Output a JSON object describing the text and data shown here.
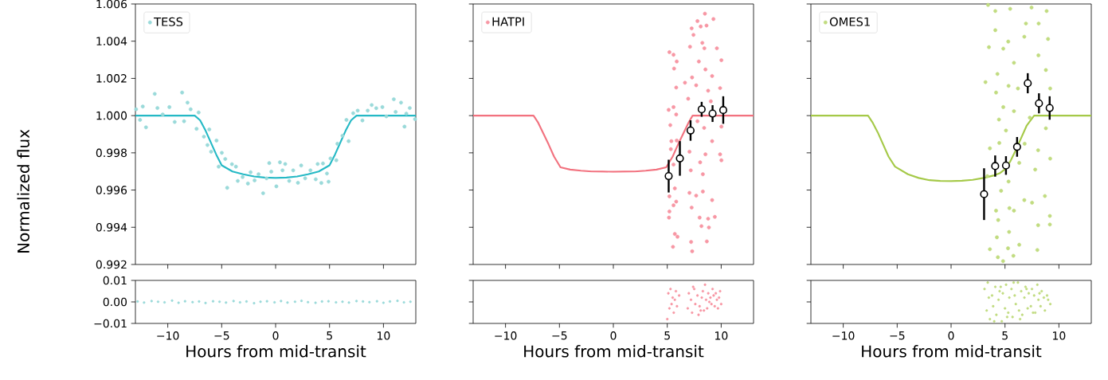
{
  "chart_data": [
    {
      "type": "scatter",
      "ylabel": "Normalized flux",
      "xlim": [
        -13,
        13
      ],
      "ylim": [
        0.992,
        1.006
      ],
      "xticks": [
        -10,
        -5,
        0,
        5,
        10
      ],
      "yticks": [
        {
          "value": 0.992,
          "label": "0.992"
        },
        {
          "value": 0.994,
          "label": "0.994"
        },
        {
          "value": 0.996,
          "label": "0.996"
        },
        {
          "value": 0.998,
          "label": "0.998"
        },
        {
          "value": 1.0,
          "label": "1.000"
        },
        {
          "value": 1.002,
          "label": "1.002"
        },
        {
          "value": 1.004,
          "label": "1.004"
        },
        {
          "value": 1.006,
          "label": "1.006"
        }
      ],
      "tick_labels": "y",
      "legend": "top left",
      "marker": "circle",
      "series": [
        {
          "name": "TESS",
          "type": "scatter",
          "color": "#9adada",
          "x": [
            -12.94,
            -12.57,
            -12.32,
            -12.02,
            -11.21,
            -10.96,
            -10.47,
            -9.85,
            -9.36,
            -8.67,
            -8.49,
            -8.17,
            -7.88,
            -7.33,
            -7.14,
            -6.65,
            -6.32,
            -6.15,
            -5.98,
            -5.48,
            -5.28,
            -4.99,
            -4.67,
            -4.49,
            -4.05,
            -3.68,
            -3.51,
            -3.06,
            -2.57,
            -2.32,
            -1.95,
            -1.58,
            -1.16,
            -0.84,
            -0.59,
            -0.4,
            0.07,
            0.4,
            0.64,
            0.89,
            1.26,
            1.63,
            2.07,
            2.37,
            2.74,
            3.23,
            3.72,
            3.9,
            4.24,
            4.39,
            4.76,
            4.91,
            5.09,
            5.63,
            5.73,
            6.2,
            6.57,
            6.77,
            7.19,
            7.61,
            8.05,
            8.54,
            8.91,
            9.33,
            9.9,
            10.27,
            10.96,
            11.13,
            11.63,
            11.95,
            12.12,
            12.44,
            12.93
          ],
          "values": [
            1.00034,
            0.99977,
            1.00049,
            0.99937,
            1.00117,
            1.00041,
            1.00006,
            1.00046,
            0.99966,
            1.00124,
            0.9997,
            1.0007,
            1.00034,
            0.99929,
            1.00017,
            0.99887,
            0.99842,
            0.99926,
            0.99806,
            0.99866,
            0.99726,
            0.998,
            0.99767,
            0.99612,
            0.99739,
            0.99726,
            0.99649,
            0.9967,
            0.99635,
            0.99696,
            0.99652,
            0.99685,
            0.99583,
            0.99663,
            0.99745,
            0.99699,
            0.9962,
            0.99749,
            0.99706,
            0.9974,
            0.99649,
            0.99706,
            0.99639,
            0.99732,
            0.99663,
            0.99706,
            0.99658,
            0.9974,
            0.99638,
            0.99743,
            0.99689,
            0.99645,
            0.9977,
            0.9976,
            0.99849,
            0.99892,
            0.99977,
            0.99863,
            1.00013,
            1.00027,
            0.99974,
            1.00027,
            1.00057,
            1.0004,
            1.00046,
            0.99996,
            1.00088,
            1.0002,
            1.0007,
            0.99941,
            1.00011,
            1.00041,
            0.99981
          ]
        },
        {
          "type": "line",
          "marker": "none",
          "color": "#25b9c5",
          "x": [
            -13,
            -7.5,
            -7,
            -6.5,
            -6,
            -5.5,
            -5,
            -4,
            -3,
            -2,
            -1,
            0,
            1,
            2,
            3,
            4,
            5,
            5.5,
            6,
            6.5,
            7,
            7.5,
            13
          ],
          "values": [
            1,
            1,
            0.99975,
            0.9992,
            0.99855,
            0.9979,
            0.99733,
            0.997,
            0.99685,
            0.99673,
            0.99667,
            0.99665,
            0.99667,
            0.99673,
            0.99685,
            0.997,
            0.99733,
            0.9979,
            0.99855,
            0.9992,
            0.99975,
            1,
            1
          ]
        }
      ]
    },
    {
      "type": "scatter",
      "xlim": [
        -13,
        13
      ],
      "ylim": [
        0.992,
        1.006
      ],
      "xticks": [
        -10,
        -5,
        0,
        5,
        10
      ],
      "yticks": [
        0.992,
        0.994,
        0.996,
        0.998,
        1.0,
        1.002,
        1.004,
        1.006
      ],
      "tick_labels": false,
      "legend": "top left",
      "marker": "circle",
      "series": [
        {
          "name": "HATPI",
          "type": "scatter",
          "color": "#f797a4",
          "x": [
            5.2,
            5.58,
            5.88,
            5.63,
            5.83,
            5.13,
            5.58,
            5.83,
            5.28,
            5.38,
            5.88,
            5.33,
            5.58,
            5.7,
            5.2,
            5.58,
            5.83,
            5.2,
            5.16,
            5.7,
            5.95,
            5.53,
            6.64,
            7.11,
            7.26,
            7.43,
            7.8,
            8.1,
            8.49,
            9.28,
            8.64,
            8.25,
            8.44,
            9.6,
            7.93,
            8.54,
            9.16,
            10.02,
            7.3,
            7.68,
            8.79,
            9.9,
            6.94,
            9.04,
            7.8,
            8.42,
            10.02,
            9.16,
            7.06,
            8.54,
            9.9,
            10.02,
            8.05,
            7.18,
            8.3,
            7.06,
            7.68,
            8.3,
            9.16,
            7.26,
            8.0,
            9.41,
            8.79,
            8.17,
            8.86,
            8.67,
            7.21,
            7.31
          ],
          "values": [
            1.00341,
            1.00327,
            1.00291,
            1.00253,
            1.00151,
            1.00031,
            1.00046,
            1.00006,
            0.99949,
            0.99863,
            0.99866,
            0.9982,
            0.99737,
            0.99609,
            0.99566,
            0.99518,
            0.99538,
            0.99485,
            0.99452,
            0.99364,
            0.99349,
            0.99295,
            1.00177,
            1.0037,
            1.00469,
            1.00434,
            1.00508,
            1.00479,
            1.00548,
            1.00519,
            1.00484,
            1.00391,
            1.00362,
            1.00362,
            1.00291,
            1.00248,
            1.00213,
            1.00298,
            1.00205,
            1.00163,
            1.00134,
            1.00148,
            1.00091,
            1.00077,
            0.9997,
            0.99934,
            0.99941,
            0.99863,
            0.99806,
            0.99792,
            0.99792,
            0.9976,
            0.99749,
            0.99706,
            0.99685,
            0.99585,
            0.9957,
            0.99592,
            0.99546,
            0.99506,
            0.99452,
            0.99456,
            0.99446,
            0.99406,
            0.99399,
            0.99324,
            0.99321,
            0.99271
          ]
        },
        {
          "type": "line",
          "marker": "none",
          "color": "#f2727f",
          "x": [
            -13,
            -7.4,
            -7,
            -6.5,
            -6,
            -5.5,
            -4.9,
            -4,
            -3,
            -2,
            -1,
            0,
            1,
            2,
            3,
            4,
            4.9,
            5.5,
            6,
            6.5,
            7,
            7.35,
            13
          ],
          "values": [
            1,
            1,
            0.99965,
            0.99905,
            0.99845,
            0.9978,
            0.99722,
            0.9971,
            0.99704,
            0.997,
            0.99699,
            0.99698,
            0.99699,
            0.997,
            0.99704,
            0.9971,
            0.99722,
            0.9978,
            0.99845,
            0.99905,
            0.99965,
            1,
            1
          ]
        },
        {
          "type": "scatter",
          "color": "#000000",
          "x": [
            5.13,
            6.17,
            7.16,
            8.19,
            9.2,
            10.19
          ],
          "values": [
            0.99675,
            0.9977,
            0.9992,
            1.00034,
            1.00011,
            1.0003
          ],
          "errors": [
            0.00088,
            0.00093,
            0.00055,
            0.0004,
            0.00045,
            0.00074
          ]
        }
      ]
    },
    {
      "type": "scatter",
      "xlim": [
        -13,
        13
      ],
      "ylim": [
        0.992,
        1.006
      ],
      "xticks": [
        -10,
        -5,
        0,
        5,
        10
      ],
      "yticks": [
        0.992,
        0.994,
        0.996,
        0.998,
        1.0,
        1.002,
        1.004,
        1.006
      ],
      "tick_labels": false,
      "legend": "top left",
      "marker": "circle",
      "series": [
        {
          "name": "OMES1",
          "type": "scatter",
          "color": "#c1dc80",
          "x": [
            3.43,
            4.1,
            5.48,
            7.46,
            8.86,
            6.94,
            4.1,
            8.12,
            5.3,
            6.79,
            8.99,
            3.51,
            4.84,
            5.83,
            8.1,
            8.79,
            4.3,
            3.19,
            5.33,
            4.17,
            6.2,
            9.19,
            4.84,
            5.83,
            4.44,
            7.3,
            8.79,
            5.09,
            4.47,
            6.82,
            3.6,
            8.07,
            9.19,
            6.32,
            7.8,
            3.36,
            5.33,
            4.64,
            6.79,
            8.7,
            4.17,
            5.41,
            5.83,
            7.51,
            9.16,
            4.37,
            8.07,
            5.38,
            4.25,
            9.16,
            3.6,
            5.28,
            6.32,
            4.34,
            4.82,
            5.78,
            8.0
          ],
          "values": [
            1.00595,
            1.00562,
            1.00574,
            1.00581,
            1.00562,
            1.00495,
            1.00459,
            1.00495,
            1.00398,
            1.00424,
            1.00412,
            1.00368,
            1.0036,
            1.00284,
            1.00324,
            1.00245,
            1.00224,
            1.0018,
            1.0016,
            1.00124,
            1.00146,
            1.00146,
            1.00046,
            1.00024,
            0.99979,
            0.99989,
            0.99932,
            0.9992,
            0.99853,
            0.99849,
            0.99824,
            0.99814,
            0.99769,
            0.99746,
            0.9971,
            0.99675,
            0.99646,
            0.99596,
            0.99546,
            0.99568,
            0.99489,
            0.99503,
            0.99489,
            0.99532,
            0.99461,
            0.99439,
            0.99411,
            0.99375,
            0.99346,
            0.99415,
            0.99282,
            0.99287,
            0.99306,
            0.99239,
            0.99218,
            0.99247,
            0.99278
          ]
        },
        {
          "type": "line",
          "marker": "none",
          "color": "#a5c948",
          "x": [
            -13,
            -7.7,
            -7.3,
            -6.8,
            -6.3,
            -5.8,
            -5.2,
            -4,
            -3,
            -2,
            -1,
            0,
            1,
            2,
            3,
            4,
            4.5,
            5,
            5.5,
            6,
            6.5,
            7,
            7.7,
            13
          ],
          "values": [
            1,
            1,
            0.99965,
            0.9991,
            0.99845,
            0.9978,
            0.99726,
            0.99685,
            0.99665,
            0.99653,
            0.99649,
            0.99648,
            0.9965,
            0.99655,
            0.99665,
            0.99679,
            0.9969,
            0.99712,
            0.99755,
            0.99815,
            0.9988,
            0.99945,
            1,
            1
          ]
        },
        {
          "type": "scatter",
          "color": "#000000",
          "x": [
            3.06,
            4.09,
            5.09,
            6.12,
            7.11,
            8.15,
            9.14
          ],
          "values": [
            0.99578,
            0.99729,
            0.99732,
            0.99832,
            1.00174,
            1.00066,
            1.00041
          ],
          "errors": [
            0.00139,
            0.00057,
            0.0005,
            0.00053,
            0.00054,
            0.00054,
            0.00063
          ]
        }
      ]
    },
    {
      "type": "scatter",
      "xlabel": "Hours from mid-transit",
      "xlim": [
        -13,
        13
      ],
      "ylim": [
        -0.01,
        0.01
      ],
      "xticks": [
        {
          "value": -10,
          "label": "−10"
        },
        {
          "value": -5,
          "label": "−5"
        },
        {
          "value": 0,
          "label": "0"
        },
        {
          "value": 5,
          "label": "5"
        },
        {
          "value": 10,
          "label": "10"
        }
      ],
      "yticks": [
        {
          "value": -0.01,
          "label": "−0.01"
        },
        {
          "value": 0,
          "label": "0.00"
        },
        {
          "value": 0.01,
          "label": "0.01"
        }
      ],
      "marker": "circle",
      "series": [
        {
          "color": "#9adada",
          "x": [
            -12.8,
            -12.2,
            -11.5,
            -10.9,
            -10.3,
            -9.6,
            -9.0,
            -8.4,
            -7.7,
            -7.1,
            -6.5,
            -5.8,
            -5.2,
            -4.6,
            -3.9,
            -3.3,
            -2.7,
            -2.0,
            -1.4,
            -0.8,
            -0.1,
            0.5,
            1.1,
            1.8,
            2.4,
            3.0,
            3.7,
            4.3,
            4.9,
            5.6,
            6.2,
            6.8,
            7.5,
            8.1,
            8.7,
            9.4,
            10.0,
            10.6,
            11.3,
            11.9,
            12.5
          ],
          "values": [
            0.0002,
            -0.0003,
            0.0004,
            0.0001,
            -0.0002,
            0.0006,
            -0.0004,
            0.0003,
            -0.0001,
            0.0002,
            -0.0005,
            0.0003,
            0.0001,
            -0.0003,
            0.0004,
            -0.0002,
            0.0002,
            -0.0006,
            0.0001,
            0.0003,
            -0.0002,
            0.0004,
            -0.0003,
            0.0001,
            0.0005,
            -0.0001,
            -0.0004,
            0.0002,
            0.0003,
            -0.0002,
            0.0001,
            -0.0003,
            0.0004,
            0.0002,
            -0.0001,
            0.0003,
            -0.0004,
            0.0002,
            0.0005,
            -0.0002,
            0.0001
          ]
        }
      ]
    },
    {
      "type": "scatter",
      "xlabel": "Hours from mid-transit",
      "xlim": [
        -13,
        13
      ],
      "ylim": [
        -0.01,
        0.01
      ],
      "xticks": [
        {
          "value": -10,
          "label": "−10"
        },
        {
          "value": -5,
          "label": "−5"
        },
        {
          "value": 0,
          "label": "0"
        },
        {
          "value": 5,
          "label": "5"
        },
        {
          "value": 10,
          "label": "10"
        }
      ],
      "yticks": [
        -0.01,
        0,
        0.01
      ],
      "tick_labels": "x",
      "marker": "circle",
      "series": [
        {
          "color": "#f797a4",
          "x": [
            5.1,
            5.2,
            5.3,
            5.4,
            5.5,
            5.6,
            5.7,
            5.8,
            5.9,
            6.1,
            6.9,
            7.0,
            7.2,
            7.3,
            7.5,
            7.6,
            7.8,
            7.9,
            8.0,
            8.2,
            8.3,
            8.4,
            8.5,
            8.6,
            8.7,
            8.8,
            9.0,
            9.1,
            9.2,
            9.3,
            9.4,
            9.5,
            9.6,
            9.7,
            9.8,
            9.9,
            10.0,
            8.1,
            7.4,
            8.9,
            5.0
          ],
          "values": [
            0.004,
            -0.003,
            0.006,
            -0.001,
            0.002,
            -0.005,
            0.001,
            0.005,
            -0.002,
            0.003,
            -0.003,
            0.004,
            0.001,
            -0.005,
            0.006,
            -0.001,
            0.003,
            -0.006,
            -0.002,
            0.002,
            0.005,
            -0.004,
            0.008,
            0.001,
            -0.003,
            0.004,
            0.002,
            -0.001,
            0.006,
            0.003,
            -0.002,
            0.004,
            0.001,
            -0.003,
            0.002,
            0.005,
            -0.001,
            -0.004,
            0.007,
            0.0,
            -0.008
          ]
        }
      ]
    },
    {
      "type": "scatter",
      "xlabel": "Hours from mid-transit",
      "xlim": [
        -13,
        13
      ],
      "ylim": [
        -0.01,
        0.01
      ],
      "xticks": [
        {
          "value": -10,
          "label": "−10"
        },
        {
          "value": -5,
          "label": "−5"
        },
        {
          "value": 0,
          "label": "0"
        },
        {
          "value": 5,
          "label": "5"
        },
        {
          "value": 10,
          "label": "10"
        }
      ],
      "yticks": [
        -0.01,
        0,
        0.01
      ],
      "tick_labels": "x",
      "marker": "circle",
      "series": [
        {
          "color": "#c1dc80",
          "x": [
            3.1,
            3.3,
            3.4,
            3.6,
            3.8,
            3.9,
            4.1,
            4.2,
            4.4,
            4.5,
            4.7,
            4.8,
            5.0,
            5.1,
            5.3,
            5.4,
            5.6,
            5.7,
            5.9,
            6.0,
            6.2,
            6.3,
            6.5,
            6.6,
            6.8,
            6.9,
            7.1,
            7.2,
            7.4,
            7.5,
            7.7,
            7.8,
            8.0,
            8.1,
            8.3,
            8.4,
            8.6,
            8.7,
            8.9,
            9.0,
            9.2,
            3.5,
            4.0,
            4.6,
            5.2,
            5.8,
            6.4,
            7.0,
            7.6,
            8.2
          ],
          "values": [
            0.006,
            -0.004,
            0.009,
            -0.008,
            0.003,
            -0.002,
            0.007,
            -0.006,
            0.001,
            0.005,
            -0.009,
            0.004,
            -0.003,
            0.008,
            -0.005,
            0.002,
            0.006,
            -0.007,
            0.003,
            -0.001,
            0.009,
            -0.004,
            0.005,
            -0.006,
            0.002,
            0.007,
            -0.003,
            0.004,
            -0.002,
            0.006,
            0.003,
            -0.005,
            0.008,
            0.001,
            -0.002,
            0.005,
            0.002,
            -0.004,
            0.003,
            0.001,
            -0.001,
            0.002,
            -0.009,
            0.007,
            -0.007,
            0.009,
            -0.008,
            0.006,
            -0.005,
            0.004
          ]
        }
      ]
    }
  ]
}
